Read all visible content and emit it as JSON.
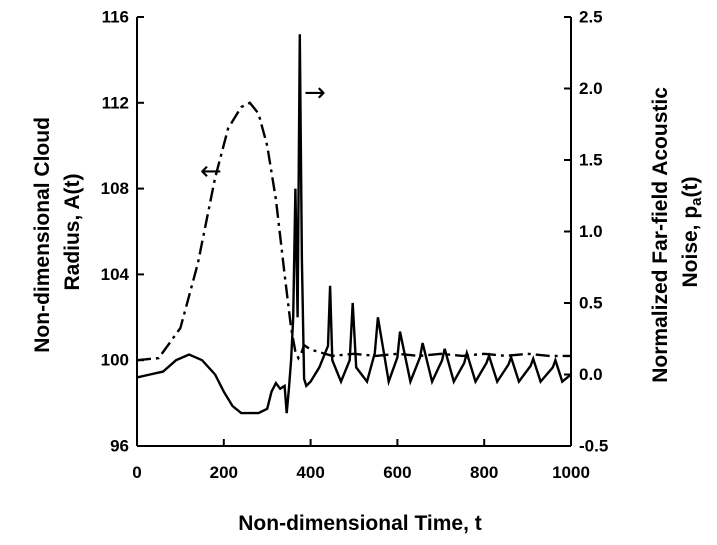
{
  "chart_data": {
    "type": "line",
    "xlabel": "Non-dimensional Time, t",
    "ylabel_left": [
      "Non-dimensional Cloud",
      "Radius, A(t)"
    ],
    "ylabel_right": [
      "Normalized Far-field Acoustic",
      "Noise, p",
      "a",
      "(t)"
    ],
    "xlim": [
      0,
      1000
    ],
    "ylim_left": [
      96,
      116
    ],
    "ylim_right": [
      -0.5,
      2.5
    ],
    "x_ticks": [
      0,
      200,
      400,
      600,
      800,
      1000
    ],
    "y_left_ticks": [
      96,
      100,
      104,
      108,
      112,
      116
    ],
    "y_right_ticks": [
      "-0.5",
      "0.0",
      "0.5",
      "1.0",
      "1.5",
      "2.0",
      "2.5"
    ],
    "grid": false,
    "series": [
      {
        "axis": "left",
        "style": "dash-dot",
        "x": [
          0,
          50,
          100,
          140,
          180,
          210,
          240,
          260,
          280,
          300,
          320,
          340,
          355,
          365,
          372,
          378,
          385,
          400,
          450,
          500,
          550,
          600,
          650,
          700,
          750,
          800,
          850,
          900,
          950,
          1000
        ],
        "y": [
          100,
          100.1,
          101.5,
          104.5,
          108.5,
          110.8,
          111.8,
          112,
          111.5,
          110,
          107.5,
          104,
          101.5,
          100.4,
          100.1,
          100.3,
          100.7,
          100.5,
          100.2,
          100.3,
          100.2,
          100.3,
          100.2,
          100.3,
          100.2,
          100.3,
          100.2,
          100.3,
          100.2,
          100.2
        ]
      },
      {
        "axis": "right",
        "style": "solid",
        "x": [
          0,
          30,
          60,
          90,
          120,
          150,
          180,
          200,
          220,
          240,
          260,
          280,
          300,
          310,
          320,
          330,
          340,
          345,
          350,
          355,
          360,
          365,
          370,
          375,
          380,
          385,
          390,
          400,
          420,
          440,
          445,
          450,
          470,
          490,
          497,
          505,
          530,
          548,
          555,
          580,
          600,
          606,
          630,
          652,
          658,
          680,
          703,
          709,
          730,
          754,
          760,
          780,
          805,
          811,
          830,
          856,
          862,
          880,
          907,
          913,
          930,
          958,
          964,
          980,
          1000
        ],
        "y": [
          -0.02,
          0.0,
          0.02,
          0.1,
          0.14,
          0.1,
          0.0,
          -0.12,
          -0.22,
          -0.27,
          -0.27,
          -0.27,
          -0.24,
          -0.12,
          -0.06,
          -0.1,
          -0.08,
          -0.27,
          -0.1,
          0.1,
          0.4,
          1.3,
          0.4,
          2.38,
          0.8,
          -0.03,
          -0.08,
          -0.05,
          0.05,
          0.2,
          0.62,
          0.1,
          -0.05,
          0.1,
          0.5,
          0.05,
          -0.05,
          0.15,
          0.4,
          -0.05,
          0.12,
          0.3,
          -0.05,
          0.12,
          0.22,
          -0.05,
          0.1,
          0.18,
          -0.05,
          0.08,
          0.15,
          -0.05,
          0.08,
          0.13,
          -0.05,
          0.07,
          0.12,
          -0.05,
          0.06,
          0.11,
          -0.05,
          0.05,
          0.1,
          -0.05,
          0.0
        ]
      }
    ],
    "annotations": [
      {
        "text": "←",
        "points_to": "left axis",
        "near_x": 170,
        "near_y_left": 108.8
      },
      {
        "text": "→",
        "points_to": "right axis",
        "near_x": 410,
        "near_y_right": 1.97
      }
    ]
  }
}
